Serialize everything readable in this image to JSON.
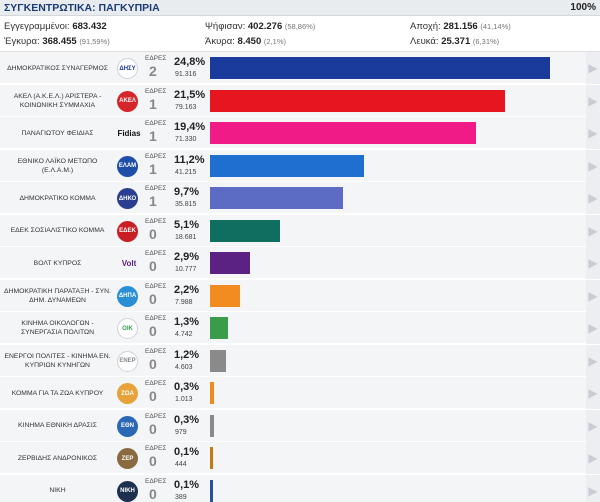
{
  "header": {
    "title": "ΣΥΓΚΕΝΤΡΩΤΙΚΑ: ΠΑΓΚΥΠΡΙΑ",
    "counted_pct": "100%"
  },
  "stats": {
    "registered_label": "Εγγεγραμμένοι:",
    "registered": "683.432",
    "voted_label": "Ψήφισαν:",
    "voted": "402.276",
    "voted_pct": "(58,86%)",
    "abstention_label": "Αποχή:",
    "abstention": "281.156",
    "abstention_pct": "(41,14%)",
    "valid_label": "Έγκυρα:",
    "valid": "368.455",
    "valid_pct": "(91,59%)",
    "invalid_label": "Άκυρα:",
    "invalid": "8.450",
    "invalid_pct": "(2,1%)",
    "blank_label": "Λευκά:",
    "blank": "25.371",
    "blank_pct": "(6,31%)"
  },
  "seats_label": "ΕΔΡΕΣ",
  "parties": [
    {
      "name": "ΔΗΜΟΚΡΑΤΙΚΟΣ ΣΥΝΑΓΕΡΜΟΣ",
      "seats": "2",
      "pct": "24,8%",
      "pct_value": 24.8,
      "votes": "91.316",
      "color": "#1a3a9c",
      "logo_color": "#ffffff",
      "logo_text": "ΔΗΣΥ",
      "logo_icon": "disy-logo-icon"
    },
    {
      "name": "ΑΚΕΛ (Α.Κ.Ε.Λ.) ΑΡΙΣΤΕΡΑ - ΚΟΙΝΩΝΙΚΗ ΣΥΜΜΑΧΙΑ",
      "seats": "1",
      "pct": "21,5%",
      "pct_value": 21.5,
      "votes": "79.163",
      "color": "#e5161f",
      "logo_color": "#d7262a",
      "logo_text": "ΑΚΕΛ",
      "logo_icon": "akel-logo-icon"
    },
    {
      "name": "ΠΑΝΑΓΙΩΤΟΥ ΦΕΙΔΙΑΣ",
      "seats": "1",
      "pct": "19,4%",
      "pct_value": 19.4,
      "votes": "71.330",
      "color": "#f01b87",
      "logo_color": "#ffffff",
      "logo_text": "Fidias",
      "logo_icon": "fidias-logo-icon"
    },
    {
      "name": "ΕΘΝΙΚΟ ΛΑΪΚΟ ΜΕΤΩΠΟ (Ε.Λ.Α.Μ.)",
      "seats": "1",
      "pct": "11,2%",
      "pct_value": 11.2,
      "votes": "41.215",
      "color": "#1f6fd1",
      "logo_color": "#1f4fa8",
      "logo_text": "ΕΛΑΜ",
      "logo_icon": "elam-logo-icon"
    },
    {
      "name": "ΔΗΜΟΚΡΑΤΙΚΟ ΚΟΜΜΑ",
      "seats": "1",
      "pct": "9,7%",
      "pct_value": 9.7,
      "votes": "35.815",
      "color": "#5c6cc4",
      "logo_color": "#2a3f8f",
      "logo_text": "ΔΗΚΟ",
      "logo_icon": "diko-logo-icon"
    },
    {
      "name": "ΕΔΕΚ ΣΟΣΙΑΛΙΣΤΙΚΟ ΚΟΜΜΑ",
      "seats": "0",
      "pct": "5,1%",
      "pct_value": 5.1,
      "votes": "18.681",
      "color": "#0f6e5f",
      "logo_color": "#c81e24",
      "logo_text": "ΕΔΕΚ",
      "logo_icon": "edek-logo-icon"
    },
    {
      "name": "ΒΟΛΤ ΚΥΠΡΟΣ",
      "seats": "0",
      "pct": "2,9%",
      "pct_value": 2.9,
      "votes": "10.777",
      "color": "#5b2283",
      "logo_color": "#ffffff",
      "logo_text": "Volt",
      "logo_icon": "volt-logo-icon"
    },
    {
      "name": "ΔΗΜΟΚΡΑΤΙΚΗ ΠΑΡΑΤΑΞΗ - ΣΥΝ. ΔΗΜ. ΔΥΝΑΜΕΩΝ",
      "seats": "0",
      "pct": "2,2%",
      "pct_value": 2.2,
      "votes": "7.988",
      "color": "#f28b20",
      "logo_color": "#2b8fd6",
      "logo_text": "ΔΗΠΑ",
      "logo_icon": "dipa-logo-icon"
    },
    {
      "name": "ΚΙΝΗΜΑ ΟΙΚΟΛΟΓΩΝ - ΣΥΝΕΡΓΑΣΙΑ ΠΟΛΙΤΩΝ",
      "seats": "0",
      "pct": "1,3%",
      "pct_value": 1.3,
      "votes": "4.742",
      "color": "#3a9c4a",
      "logo_color": "#ffffff",
      "logo_text": "ΟΙΚ",
      "logo_icon": "ecologists-logo-icon"
    },
    {
      "name": "ΕΝΕΡΓΟΙ ΠΟΛΙΤΕΣ - ΚΙΝΗΜΑ ΕΝ. ΚΥΠΡΙΩΝ ΚΥΝΗΓΩΝ",
      "seats": "0",
      "pct": "1,2%",
      "pct_value": 1.2,
      "votes": "4.603",
      "color": "#8a8a8a",
      "logo_color": "#ffffff",
      "logo_text": "ΕΝΕΡ",
      "logo_icon": "active-citizens-logo-icon"
    },
    {
      "name": "ΚΟΜΜΑ ΓΙΑ ΤΑ ΖΩΑ ΚΥΠΡΟΥ",
      "seats": "0",
      "pct": "0,3%",
      "pct_value": 0.3,
      "votes": "1.013",
      "color": "#f08a1c",
      "logo_color": "#e8a23a",
      "logo_text": "ΖΩΑ",
      "logo_icon": "animals-party-logo-icon"
    },
    {
      "name": "ΚΙΝΗΜΑ ΕΘΝΙΚΗ ΔΡΑΣΙΣ",
      "seats": "0",
      "pct": "0,3%",
      "pct_value": 0.3,
      "votes": "979",
      "color": "#8a8a8a",
      "logo_color": "#2a67b5",
      "logo_text": "ΕΘΝ",
      "logo_icon": "national-action-logo-icon"
    },
    {
      "name": "ΖΕΡΒΙΔΗΣ ΑΝΔΡΟΝΙΚΟΣ",
      "seats": "0",
      "pct": "0,1%",
      "pct_value": 0.1,
      "votes": "444",
      "color": "#c47a10",
      "logo_color": "#8a6a40",
      "logo_text": "ΖΕΡ",
      "logo_icon": "zervides-photo-icon"
    },
    {
      "name": "ΝΙΚΗ",
      "seats": "0",
      "pct": "0,1%",
      "pct_value": 0.1,
      "votes": "389",
      "color": "#2a4fa0",
      "logo_color": "#1d3050",
      "logo_text": "ΝΙΚΗ",
      "logo_icon": "niki-logo-icon"
    }
  ]
}
